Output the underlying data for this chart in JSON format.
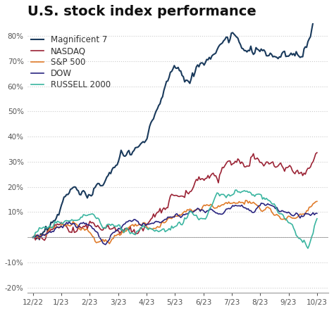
{
  "title": "U.S. stock index performance",
  "title_fontsize": 14,
  "background_color": "#ffffff",
  "series": {
    "Magnificent 7": {
      "color": "#1a3a5c",
      "linewidth": 1.5
    },
    "NASDAQ": {
      "color": "#9b2335",
      "linewidth": 1.2
    },
    "S&P 500": {
      "color": "#e07b2a",
      "linewidth": 1.2
    },
    "DOW": {
      "color": "#2a2580",
      "linewidth": 1.2
    },
    "RUSSELL 2000": {
      "color": "#3ab5a0",
      "linewidth": 1.2
    }
  },
  "yticks": [
    -20,
    -10,
    0,
    10,
    20,
    30,
    40,
    50,
    60,
    70,
    80
  ],
  "ylim": [
    -22,
    85
  ],
  "xtick_labels": [
    "12/22",
    "1/23",
    "2/23",
    "3/23",
    "4/23",
    "5/23",
    "6/23",
    "7/23",
    "8/23",
    "9/23",
    "10/23"
  ],
  "grid_color": "#cccccc",
  "legend_fontsize": 8.5
}
